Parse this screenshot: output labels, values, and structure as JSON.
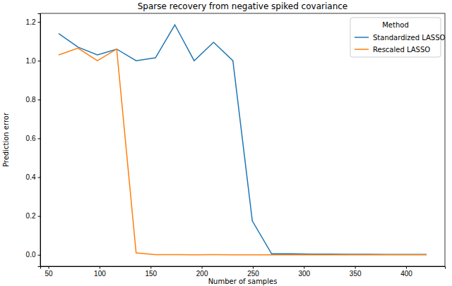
{
  "chart_data": {
    "type": "line",
    "title": "Sparse recovery from negative spiked covariance",
    "x_label": "Number of samples",
    "y_label": "Prediction error",
    "legend_title": "Method",
    "legend": "upper right",
    "grid": false,
    "x": [
      60,
      78.9,
      97.9,
      116.8,
      135.8,
      154.7,
      173.7,
      192.6,
      211.6,
      230.5,
      249.5,
      268.4,
      287.4,
      306.3,
      325.3,
      344.2,
      363.2,
      382.1,
      401.1,
      420
    ],
    "series": [
      {
        "name": "Standardized LASSO",
        "color": "#1f77b4",
        "values": [
          1.14,
          1.07,
          1.03,
          1.06,
          1.0,
          1.015,
          1.185,
          1.0,
          1.095,
          1.0,
          0.175,
          0.005,
          0.005,
          0.004,
          0.004,
          0.003,
          0.003,
          0.002,
          0.002,
          0.002
        ]
      },
      {
        "name": "Rescaled LASSO",
        "color": "#ff7f0e",
        "values": [
          1.03,
          1.065,
          1.0,
          1.06,
          0.01,
          0.001,
          0.001,
          0.0,
          0.001,
          0.0,
          0.0,
          0.0,
          0.0,
          0.0,
          0.0,
          0.0,
          0.0,
          0.0,
          0.0,
          0.0
        ]
      }
    ],
    "xlim": [
      42,
      438
    ],
    "ylim": [
      -0.059,
      1.244
    ],
    "xticks": [
      50,
      100,
      150,
      200,
      250,
      300,
      350,
      400
    ],
    "yticks": [
      {
        "value": 0,
        "label": "0.0"
      },
      0.2,
      0.4,
      0.6,
      0.8,
      {
        "value": 1,
        "label": "1.0"
      },
      1.2
    ]
  }
}
